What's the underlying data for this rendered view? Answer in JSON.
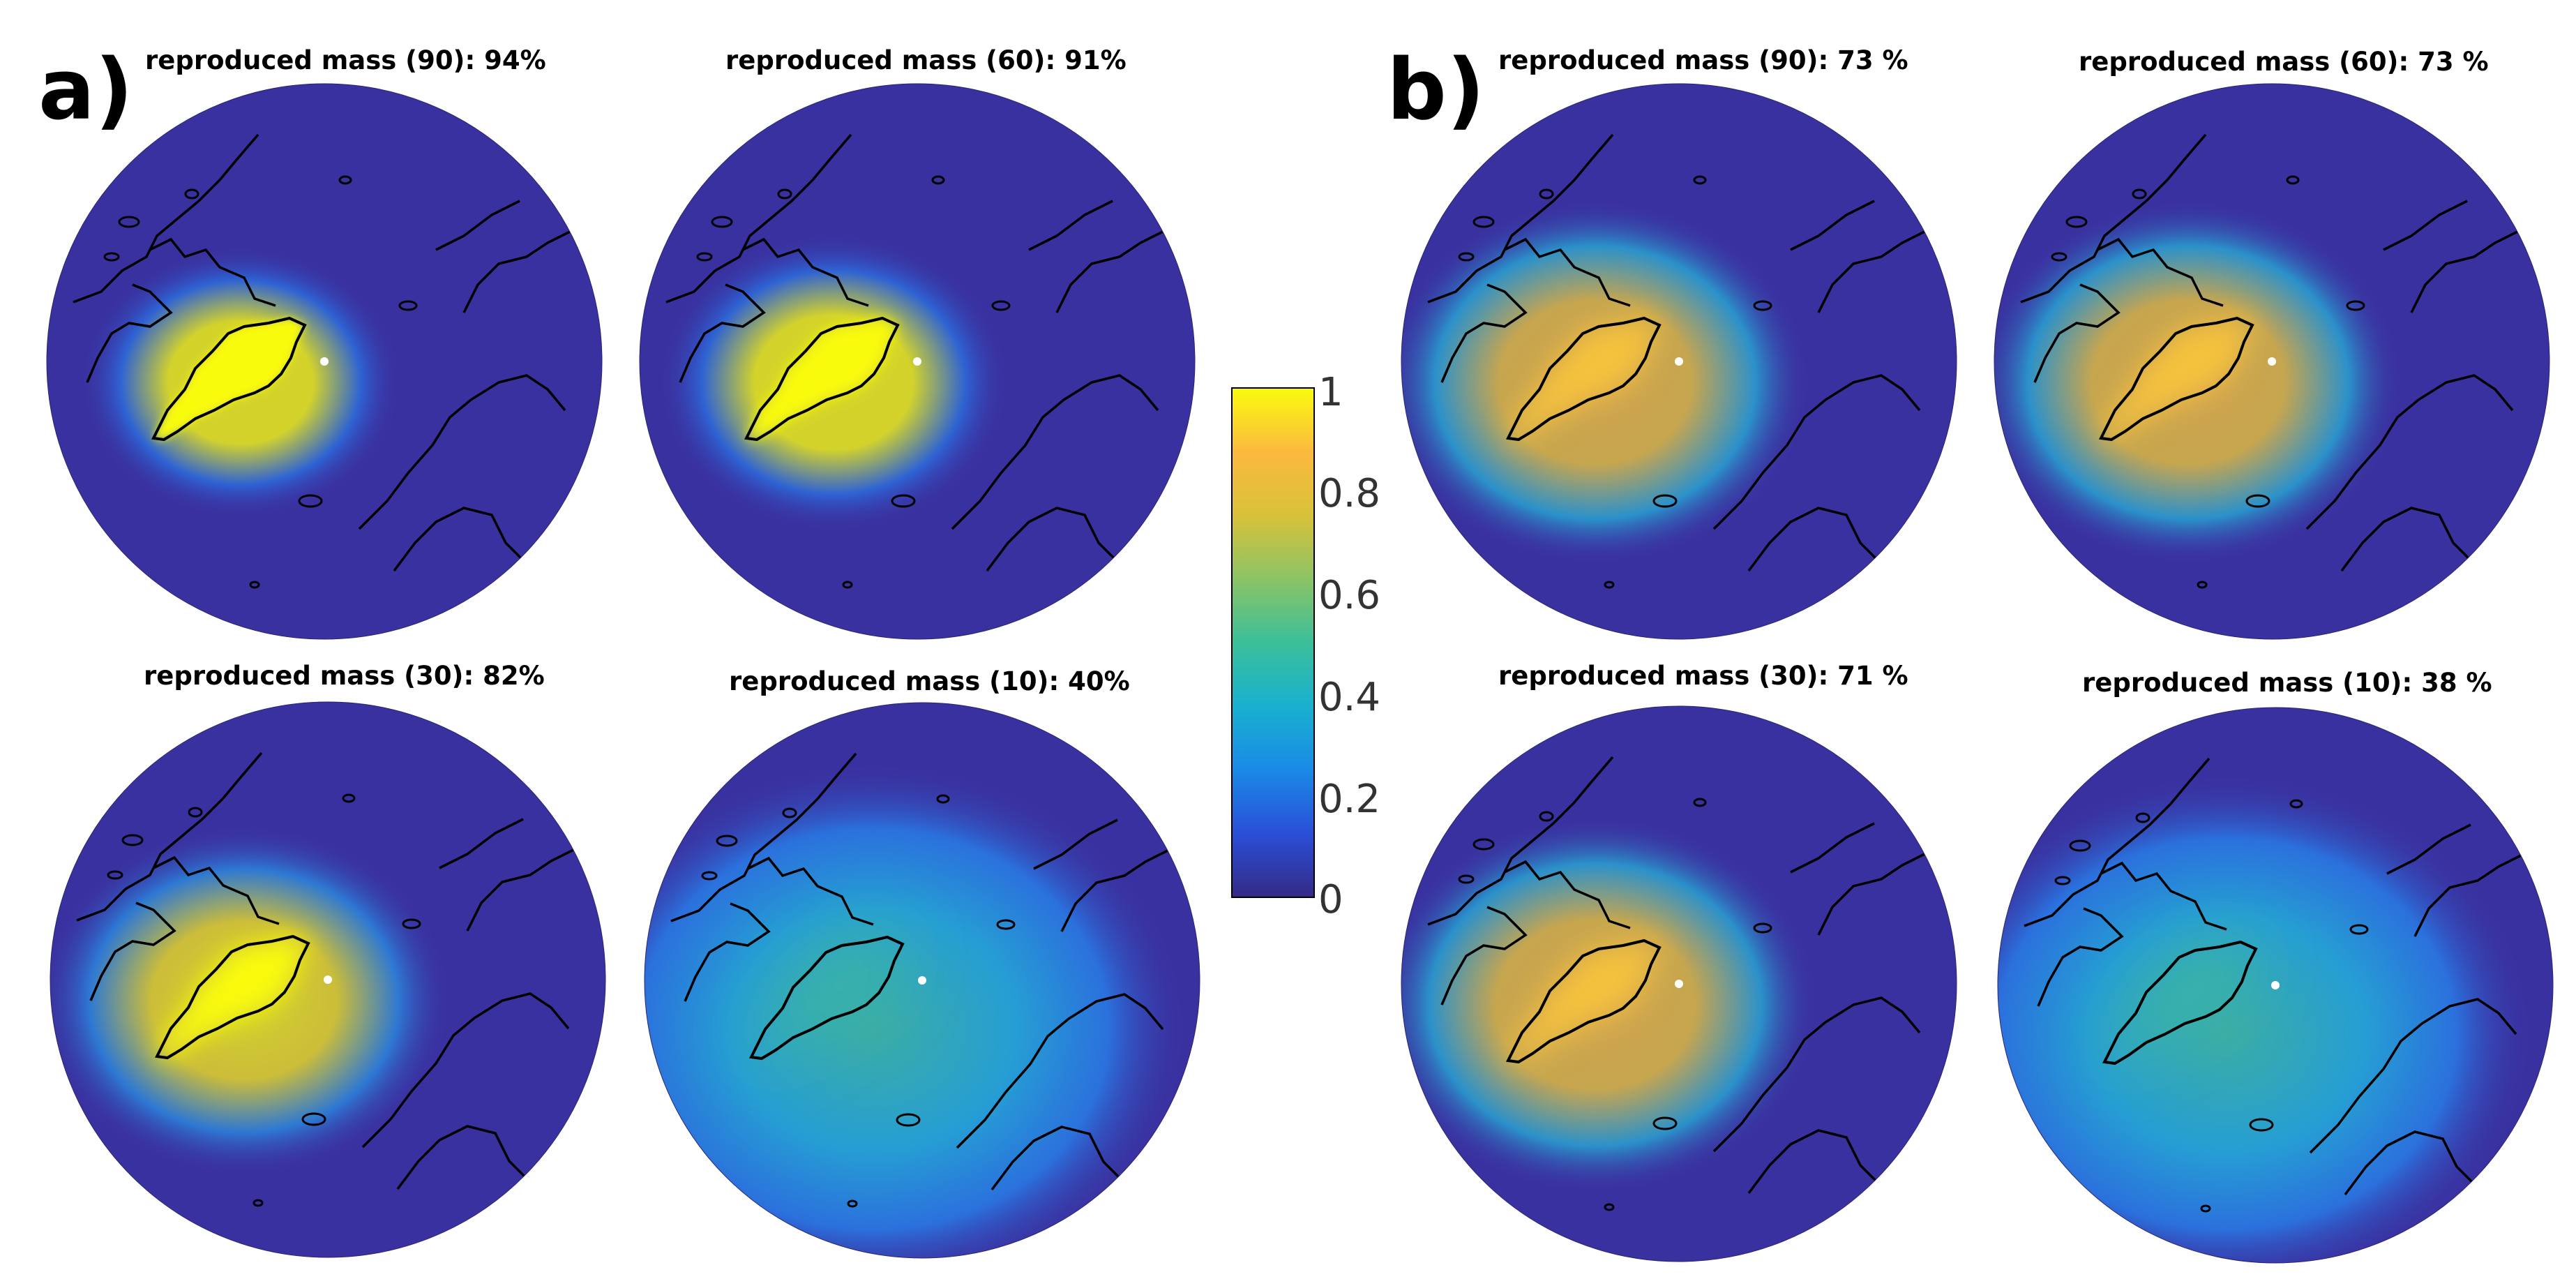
{
  "panels": [
    {
      "label": "a)"
    },
    {
      "label": "b)"
    }
  ],
  "maps": [
    {
      "title": "reproduced mass (90): 94%",
      "mode": "sharp",
      "spread": 0.0
    },
    {
      "title": "reproduced mass (60): 91%",
      "mode": "sharp",
      "spread": 0.1
    },
    {
      "title": "reproduced mass (30): 82%",
      "mode": "medium",
      "spread": 0.3
    },
    {
      "title": "reproduced mass (10): 40%",
      "mode": "wide",
      "spread": 1.0
    },
    {
      "title": "reproduced mass (90):  73 %",
      "mode": "soft",
      "spread": 0.35
    },
    {
      "title": "reproduced mass (60):  73 %",
      "mode": "soft",
      "spread": 0.35
    },
    {
      "title": "reproduced mass (30):  71 %",
      "mode": "soft",
      "spread": 0.4
    },
    {
      "title": "reproduced mass (10):  38 %",
      "mode": "wide",
      "spread": 0.95
    }
  ],
  "colorbar": {
    "ticks": [
      "1",
      "0.8",
      "0.6",
      "0.4",
      "0.2",
      "0"
    ],
    "range": [
      0,
      1
    ],
    "stops": [
      "#352a87",
      "#2a4fd8",
      "#1a8ae6",
      "#19b0cf",
      "#3bbf99",
      "#8cc366",
      "#d8c23a",
      "#fbb93f",
      "#f9fb0e"
    ]
  },
  "colors": {
    "background_disk": "#3a31a0",
    "coastline": "#000000",
    "pole_marker": "#ffffff"
  }
}
